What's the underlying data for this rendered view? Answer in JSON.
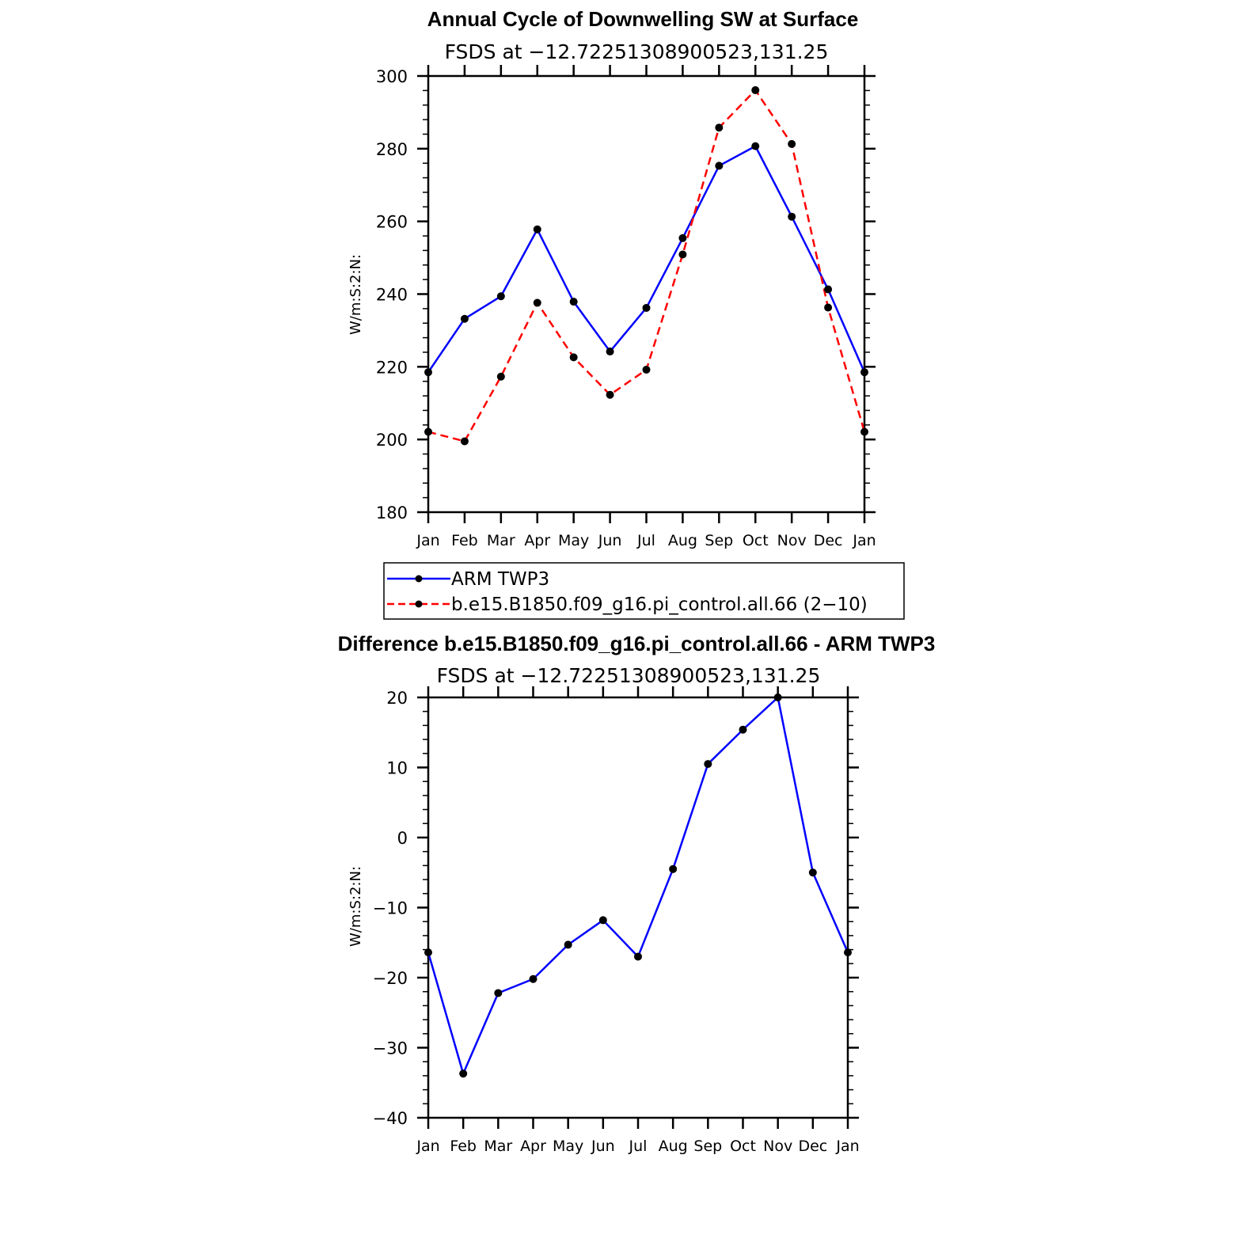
{
  "chart_data": [
    {
      "type": "line",
      "title": "Annual Cycle of Downwelling SW at Surface",
      "subtitle": "FSDS at −12.72251308900523,131.25",
      "xlabel": "",
      "ylabel": "W/m:S:2:N:",
      "categories": [
        "Jan",
        "Feb",
        "Mar",
        "Apr",
        "May",
        "Jun",
        "Jul",
        "Aug",
        "Sep",
        "Oct",
        "Nov",
        "Dec",
        "Jan"
      ],
      "ylim": [
        180,
        300
      ],
      "yticks": [
        "180",
        "200",
        "220",
        "240",
        "260",
        "280",
        "300"
      ],
      "series": [
        {
          "name": "ARM TWP3",
          "color": "#0000ff",
          "style": "solid",
          "marker": "circle",
          "values": [
            218.5,
            233.2,
            239.4,
            257.8,
            237.9,
            224.2,
            236.2,
            255.4,
            275.3,
            280.7,
            261.3,
            241.3,
            218.5
          ]
        },
        {
          "name": "b.e15.B1850.f09_g16.pi_control.all.66 (2−10)",
          "color": "#ff0000",
          "style": "dashed",
          "marker": "circle",
          "values": [
            202.1,
            199.5,
            217.3,
            237.6,
            222.6,
            212.3,
            219.2,
            250.9,
            285.8,
            296.1,
            281.3,
            236.3,
            202.1
          ]
        }
      ],
      "legend": "below"
    },
    {
      "type": "line",
      "title": "Difference b.e15.B1850.f09_g16.pi_control.all.66 - ARM TWP3",
      "subtitle": "FSDS at −12.72251308900523,131.25",
      "xlabel": "",
      "ylabel": "W/m:S:2:N:",
      "categories": [
        "Jan",
        "Feb",
        "Mar",
        "Apr",
        "May",
        "Jun",
        "Jul",
        "Aug",
        "Sep",
        "Oct",
        "Nov",
        "Dec",
        "Jan"
      ],
      "ylim": [
        -40,
        20
      ],
      "yticks": [
        "−40",
        "−30",
        "−20",
        "−10",
        "0",
        "10",
        "20"
      ],
      "series": [
        {
          "name": "Difference",
          "color": "#0000ff",
          "style": "solid",
          "marker": "circle",
          "values": [
            -16.4,
            -33.7,
            -22.2,
            -20.2,
            -15.3,
            -11.8,
            -17.0,
            -4.5,
            10.5,
            15.4,
            20.0,
            -5.0,
            -16.4
          ]
        }
      ]
    }
  ]
}
